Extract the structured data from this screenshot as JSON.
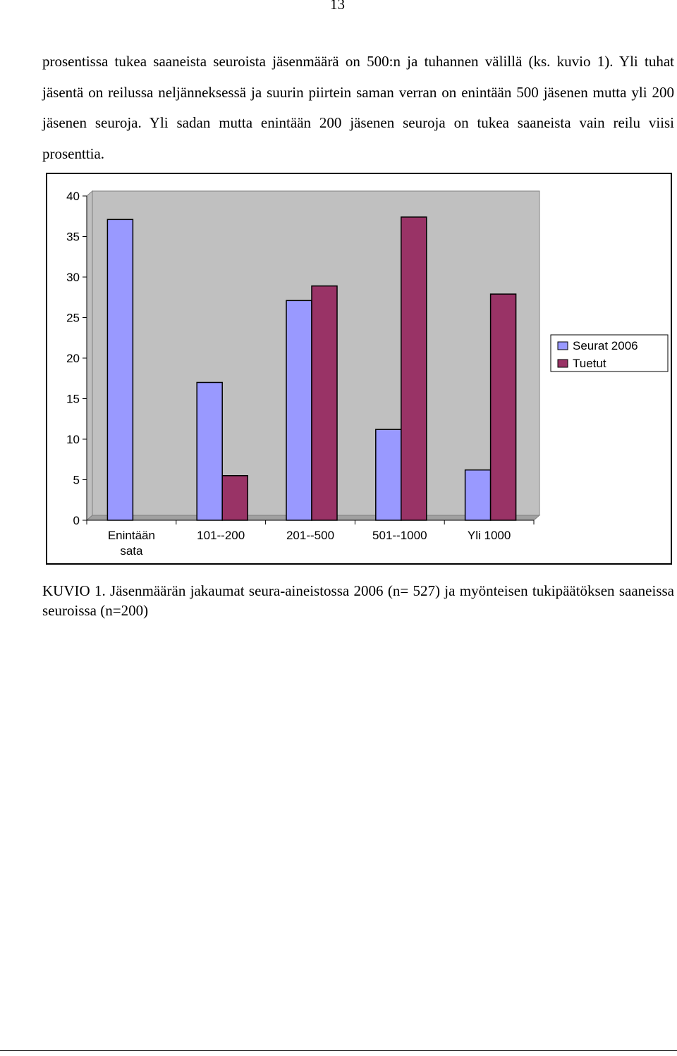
{
  "page_number": "13",
  "paragraph": "prosentissa tukea saaneista seuroista jäsenmäärä on 500:n ja tuhannen välillä (ks. kuvio 1). Yli tuhat jäsentä on reilussa neljänneksessä ja suurin piirtein saman verran on enintään 500 jäsenen mutta yli 200 jäsenen seuroja. Yli sadan mutta enintään 200 jäsenen seuroja on tukea saaneista vain reilu viisi prosenttia.",
  "caption": "KUVIO 1. Jäsenmäärän jakaumat seura-aineistossa 2006 (n= 527) ja myönteisen tukipäätöksen saaneissa seuroissa (n=200)",
  "chart_data": {
    "type": "bar",
    "categories": [
      [
        "Enintään",
        "sata"
      ],
      [
        "101--200"
      ],
      [
        "201--500"
      ],
      [
        "501--1000"
      ],
      [
        "Yli 1000"
      ]
    ],
    "series": [
      {
        "name": "Seurat 2006",
        "values": [
          37.1,
          17,
          27.1,
          11.2,
          6.2
        ],
        "color": "#9999ff"
      },
      {
        "name": "Tuetut",
        "values": [
          0,
          5.5,
          28.9,
          37.4,
          27.9
        ],
        "color": "#993366"
      }
    ],
    "ylim": [
      0,
      40
    ],
    "yticks": [
      "0",
      "5",
      "10",
      "15",
      "20",
      "25",
      "30",
      "35",
      "40"
    ],
    "grid": false,
    "plot_background": "#c0c0c0",
    "legend_position": "right"
  }
}
